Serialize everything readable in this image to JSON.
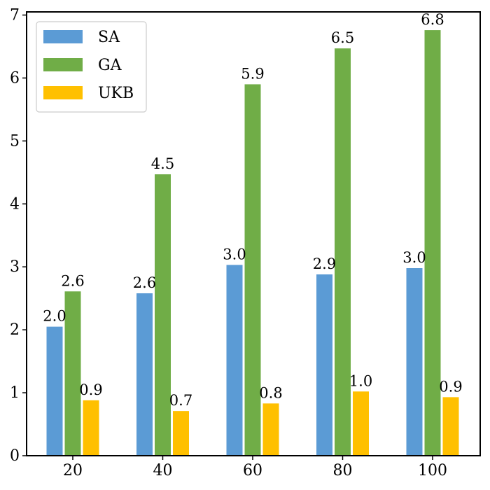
{
  "chart_data": {
    "type": "bar",
    "categories": [
      "20",
      "40",
      "60",
      "80",
      "100"
    ],
    "series": [
      {
        "name": "SA",
        "color": "#5b9bd5",
        "values": [
          2.05,
          2.58,
          3.03,
          2.88,
          2.98
        ],
        "labels": [
          "2.0",
          "2.6",
          "3.0",
          "2.9",
          "3.0"
        ]
      },
      {
        "name": "GA",
        "color": "#70ad47",
        "values": [
          2.61,
          4.47,
          5.9,
          6.47,
          6.76
        ],
        "labels": [
          "2.6",
          "4.5",
          "5.9",
          "6.5",
          "6.8"
        ]
      },
      {
        "name": "UKB",
        "color": "#ffc000",
        "values": [
          0.88,
          0.71,
          0.83,
          1.02,
          0.93
        ],
        "labels": [
          "0.9",
          "0.7",
          "0.8",
          "1.0",
          "0.9"
        ]
      }
    ],
    "yticks": [
      "0",
      "1",
      "2",
      "3",
      "4",
      "5",
      "6",
      "7"
    ],
    "ylim": [
      0,
      7.05
    ],
    "legend_position": "top-left",
    "grid": false,
    "xlabel": "",
    "ylabel": "",
    "title": ""
  }
}
